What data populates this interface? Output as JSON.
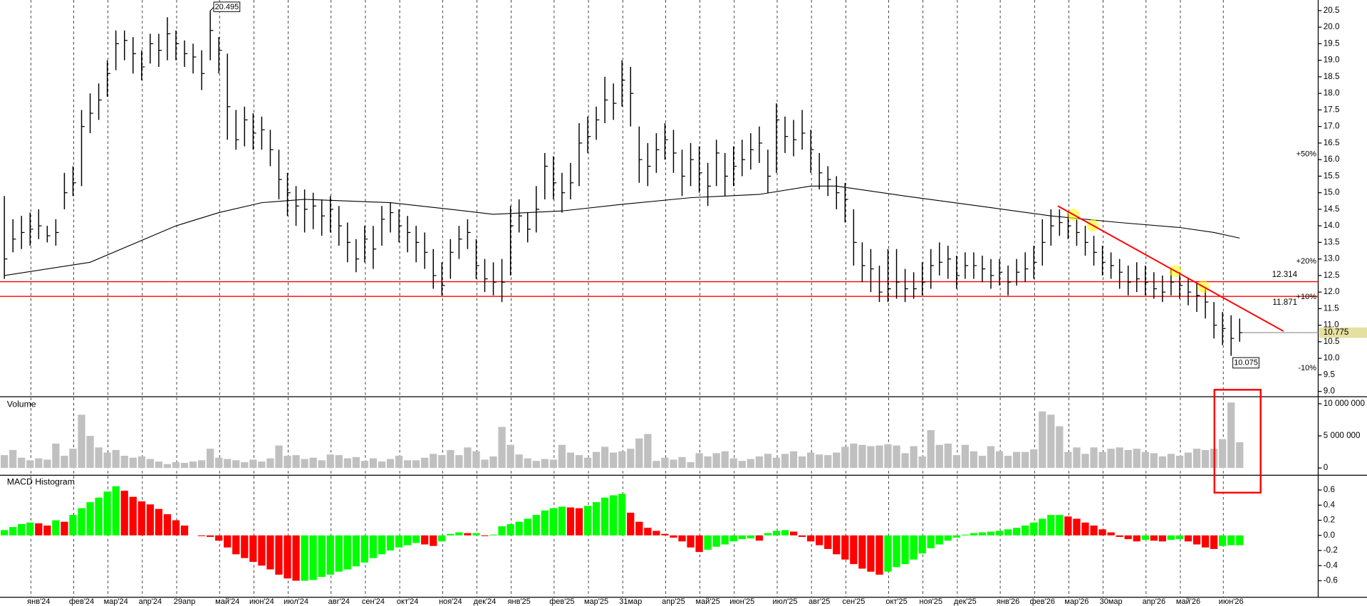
{
  "chart_data": [
    {
      "type": "ohlc",
      "color": "#000000",
      "ylim": [
        8.84,
        20.82
      ],
      "yticks": [
        {
          "value": 9,
          "label": "9.0"
        },
        9.5,
        {
          "value": 10,
          "label": "10.0"
        },
        10.5,
        {
          "value": 11,
          "label": "11.0"
        },
        11.5,
        {
          "value": 12,
          "label": "12.0"
        },
        12.5,
        {
          "value": 13,
          "label": "13.0"
        },
        13.5,
        {
          "value": 14,
          "label": "14.0"
        },
        14.5,
        {
          "value": 15,
          "label": "15.0"
        },
        15.5,
        {
          "value": 16,
          "label": "16.0"
        },
        16.5,
        {
          "value": 17,
          "label": "17.0"
        },
        17.5,
        {
          "value": 18,
          "label": "18.0"
        },
        18.5,
        {
          "value": 19,
          "label": "19.0"
        },
        19.5,
        {
          "value": 20,
          "label": "20.0"
        },
        20.5
      ],
      "high": [
        14.9,
        14.2,
        14.3,
        14.4,
        14.5,
        14.0,
        14.2,
        15.6,
        15.8,
        17.5,
        18.0,
        18.3,
        19.0,
        19.9,
        19.9,
        19.7,
        19.3,
        19.8,
        19.8,
        20.3,
        19.9,
        19.6,
        19.5,
        19.3,
        20.495,
        19.7,
        19.2,
        17.5,
        17.6,
        17.4,
        17.3,
        16.9,
        16.3,
        15.6,
        15.2,
        15.1,
        15.0,
        14.8,
        14.9,
        14.6,
        14.1,
        13.6,
        14.0,
        14.0,
        14.6,
        14.7,
        14.5,
        14.3,
        14.0,
        13.8,
        13.3,
        12.9,
        13.6,
        14.0,
        14.2,
        13.6,
        13.0,
        12.9,
        13.0,
        14.6,
        14.8,
        14.4,
        15.2,
        16.2,
        16.1,
        15.6,
        15.9,
        17.1,
        17.3,
        17.6,
        18.5,
        18.3,
        19.0,
        18.8,
        17.0,
        16.5,
        16.8,
        17.1,
        16.9,
        16.3,
        16.5,
        16.4,
        15.9,
        16.6,
        16.2,
        16.4,
        16.6,
        16.8,
        17.0,
        16.3,
        17.7,
        17.3,
        17.2,
        17.5,
        16.9,
        16.2,
        15.8,
        15.5,
        15.3,
        14.5,
        13.5,
        13.3,
        12.8,
        13.3,
        13.3,
        12.7,
        12.6,
        12.9,
        13.3,
        13.5,
        13.4,
        13.1,
        13.2,
        13.2,
        13.1,
        13.0,
        13.0,
        12.8,
        13.0,
        13.2,
        13.4,
        14.2,
        14.5,
        14.5,
        14.4,
        14.2,
        14.0,
        13.7,
        13.4,
        13.2,
        13.0,
        12.8,
        12.9,
        12.8,
        12.6,
        12.5,
        12.7,
        12.6,
        12.4,
        12.3,
        12.1,
        11.7,
        11.4,
        11.3,
        11.2
      ],
      "low": [
        12.4,
        13.2,
        13.3,
        13.4,
        13.6,
        13.5,
        13.4,
        14.5,
        14.9,
        15.2,
        16.8,
        17.2,
        17.9,
        18.7,
        19.0,
        18.6,
        18.4,
        18.9,
        18.8,
        19.0,
        19.0,
        18.8,
        18.6,
        18.1,
        19.0,
        18.6,
        16.6,
        16.3,
        16.4,
        16.3,
        16.3,
        15.8,
        14.8,
        14.3,
        14.0,
        13.8,
        13.9,
        13.7,
        13.8,
        13.4,
        12.9,
        12.6,
        12.9,
        12.7,
        13.4,
        13.8,
        13.5,
        13.2,
        12.9,
        12.7,
        12.1,
        11.9,
        12.4,
        13.0,
        13.3,
        12.4,
        12.0,
        11.9,
        11.7,
        12.5,
        13.8,
        13.5,
        13.8,
        14.8,
        14.8,
        14.4,
        14.8,
        15.2,
        16.2,
        16.6,
        17.1,
        17.2,
        17.6,
        17.0,
        15.3,
        15.2,
        15.6,
        16.0,
        15.6,
        14.9,
        15.2,
        15.0,
        14.6,
        15.2,
        14.9,
        15.2,
        15.5,
        15.7,
        15.9,
        15.0,
        15.6,
        16.2,
        16.1,
        16.3,
        15.6,
        15.1,
        14.9,
        14.5,
        14.1,
        12.8,
        12.3,
        12.0,
        11.7,
        11.7,
        11.8,
        11.7,
        11.8,
        11.9,
        12.1,
        12.5,
        12.4,
        12.1,
        12.4,
        12.4,
        12.3,
        12.1,
        12.2,
        11.9,
        12.2,
        12.3,
        12.4,
        12.8,
        13.4,
        13.7,
        13.6,
        13.4,
        13.1,
        12.8,
        12.5,
        12.4,
        12.1,
        11.9,
        12.0,
        11.9,
        11.8,
        11.7,
        11.9,
        11.8,
        11.6,
        11.4,
        11.2,
        10.6,
        10.4,
        10.075,
        10.5
      ],
      "close": [
        13.0,
        13.6,
        13.8,
        13.9,
        14.0,
        13.7,
        13.8,
        15.0,
        15.3,
        17.0,
        17.4,
        17.8,
        18.6,
        19.5,
        19.6,
        19.2,
        18.8,
        19.5,
        19.3,
        19.8,
        19.5,
        19.2,
        19.1,
        18.6,
        19.9,
        19.3,
        17.6,
        16.6,
        17.2,
        16.8,
        16.9,
        16.3,
        15.4,
        15.0,
        14.6,
        14.5,
        14.6,
        14.3,
        14.5,
        14.0,
        13.5,
        13.0,
        13.6,
        13.3,
        14.2,
        14.4,
        14.0,
        13.8,
        13.5,
        13.2,
        12.5,
        12.2,
        13.2,
        13.6,
        13.8,
        12.8,
        12.4,
        12.3,
        12.3,
        14.0,
        14.3,
        13.9,
        14.5,
        15.8,
        15.3,
        15.0,
        15.3,
        16.5,
        16.7,
        17.2,
        17.8,
        17.7,
        18.4,
        18.0,
        16.0,
        15.8,
        16.3,
        16.6,
        16.2,
        15.5,
        16.0,
        15.6,
        15.2,
        16.2,
        15.5,
        15.8,
        16.0,
        16.3,
        16.5,
        15.5,
        17.2,
        16.7,
        16.6,
        16.8,
        16.3,
        15.6,
        15.4,
        15.0,
        14.8,
        13.5,
        12.8,
        12.7,
        12.0,
        12.1,
        12.3,
        12.1,
        12.1,
        12.3,
        12.8,
        12.9,
        13.0,
        12.5,
        12.8,
        12.8,
        12.7,
        12.5,
        12.6,
        12.3,
        12.6,
        12.7,
        12.9,
        13.5,
        14.0,
        14.1,
        14.0,
        13.8,
        13.5,
        13.2,
        12.9,
        12.8,
        12.6,
        12.3,
        12.4,
        12.3,
        12.1,
        12.0,
        12.3,
        12.2,
        12.0,
        11.9,
        11.7,
        11.0,
        10.9,
        10.6,
        10.775
      ],
      "ma": {
        "color": "#000000",
        "x": [
          0,
          10,
          20,
          25,
          30,
          35,
          45,
          52,
          57,
          65,
          72,
          80,
          88,
          94,
          97,
          105,
          115,
          122,
          130,
          137,
          141,
          144
        ],
        "values": [
          12.5,
          12.9,
          14.0,
          14.4,
          14.7,
          14.8,
          14.7,
          14.5,
          14.35,
          14.45,
          14.65,
          14.85,
          14.95,
          15.2,
          15.2,
          14.9,
          14.55,
          14.3,
          14.1,
          13.95,
          13.8,
          13.63
        ]
      },
      "levels": [
        12.314,
        11.871
      ],
      "level_color": "#ff0000",
      "trendline": {
        "x": [
          122.8,
          149.1
        ],
        "y": [
          14.6,
          10.82
        ],
        "color": "#ff0000"
      },
      "percent_levels": [
        {
          "value": 50,
          "label": "+50%"
        },
        {
          "value": 20,
          "label": "+20%"
        },
        {
          "value": 10,
          "label": "+10%"
        },
        {
          "value": -10,
          "label": "-10%"
        }
      ],
      "up_color": "#009900",
      "down_color": "#cc0000"
    },
    {
      "type": "bar",
      "title": "Volume",
      "color": "#c0c0c0",
      "ylim": [
        -1130000,
        11100000
      ],
      "yticks": [
        {
          "value": 10000000,
          "label": "10 000 000"
        },
        {
          "value": 5000000,
          "label": "5 000 000"
        },
        0
      ],
      "values": [
        2000000,
        2800000,
        1600000,
        1200000,
        1500000,
        1300000,
        3800000,
        1900000,
        3000000,
        8300000,
        5000000,
        3200000,
        2400000,
        2800000,
        1900000,
        1600000,
        1800000,
        1400000,
        1000000,
        600000,
        900000,
        800000,
        1000000,
        1200000,
        3000000,
        1600000,
        1400000,
        1200000,
        900000,
        1300000,
        1000000,
        1500000,
        3500000,
        1900000,
        2000000,
        1400000,
        1600000,
        1200000,
        2100000,
        2000000,
        1500000,
        1700000,
        1100000,
        1500000,
        1000000,
        1400000,
        1900000,
        1200000,
        1200000,
        1600000,
        2200000,
        2000000,
        2800000,
        2000000,
        3200000,
        2600000,
        1300000,
        1800000,
        6400000,
        3600000,
        2100000,
        1500000,
        1100000,
        1400000,
        1300000,
        3600000,
        2400000,
        2000000,
        1600000,
        2500000,
        3300000,
        2400000,
        2600000,
        3000000,
        4600000,
        5300000,
        1100000,
        1600000,
        1300000,
        1700000,
        900000,
        2300000,
        1800000,
        2300000,
        2600000,
        1500000,
        1100000,
        1400000,
        1800000,
        2200000,
        1600000,
        2200000,
        2600000,
        1800000,
        2400000,
        2100000,
        2000000,
        2400000,
        3300000,
        3800000,
        3600000,
        3400000,
        3500000,
        3700000,
        3500000,
        2300000,
        3400000,
        1800000,
        5900000,
        3600000,
        3800000,
        2000000,
        3600000,
        2600000,
        1900000,
        3400000,
        2600000,
        1900000,
        2500000,
        2500000,
        2900000,
        8800000,
        8300000,
        6500000,
        2500000,
        3200000,
        2200000,
        3200000,
        2500000,
        3000000,
        3200000,
        2800000,
        3000000,
        2500000,
        2300000,
        1800000,
        2200000,
        1900000,
        2400000,
        3000000,
        2800000,
        3000000,
        4500000,
        10200000,
        4000000
      ]
    },
    {
      "type": "bar",
      "title": "MACD Histogram",
      "up_color": "#00ff00",
      "down_color": "#ff0000",
      "ylim": [
        -0.819,
        0.796
      ],
      "yticks": [
        0.6,
        0.4,
        0.2,
        {
          "value": 0,
          "label": "0.0"
        },
        -0.2,
        -0.4,
        -0.6
      ],
      "categories": [
        null,
        null,
        null,
        null,
        "янв'24",
        null,
        null,
        null,
        null,
        "фев'24",
        null,
        null,
        null,
        "мар'24",
        null,
        null,
        null,
        "апр'24",
        null,
        null,
        null,
        "29апр",
        null,
        null,
        null,
        null,
        "май'24",
        null,
        null,
        null,
        "июн'24",
        null,
        null,
        null,
        "июл'24",
        null,
        null,
        null,
        null,
        "авг'24",
        null,
        null,
        null,
        "сен'24",
        null,
        null,
        null,
        "окт'24",
        null,
        null,
        null,
        null,
        "ноя'24",
        null,
        null,
        null,
        "дек'24",
        null,
        null,
        null,
        "янв'25",
        null,
        null,
        null,
        null,
        "фев'25",
        null,
        null,
        null,
        "мар'25",
        null,
        null,
        null,
        "31мар",
        null,
        null,
        null,
        null,
        "апр'25",
        null,
        null,
        null,
        "май'25",
        null,
        null,
        null,
        "июн'25",
        null,
        null,
        null,
        null,
        "июл'25",
        null,
        null,
        null,
        "авг'25",
        null,
        null,
        null,
        "сен'25",
        null,
        null,
        null,
        null,
        "окт'25",
        null,
        null,
        null,
        "ноя'25",
        null,
        null,
        null,
        "дек'25",
        null,
        null,
        null,
        null,
        "янв'26",
        null,
        null,
        null,
        "фев'26",
        null,
        null,
        null,
        "мар'26",
        null,
        null,
        null,
        "30мар",
        null,
        null,
        null,
        null,
        "апр'26",
        null,
        null,
        null,
        "май'26",
        null,
        null,
        null,
        null,
        "июн'26",
        null
      ],
      "values": [
        0.07,
        0.11,
        0.15,
        0.17,
        0.16,
        0.13,
        0.2,
        0.18,
        0.27,
        0.36,
        0.44,
        0.5,
        0.58,
        0.65,
        0.59,
        0.51,
        0.45,
        0.41,
        0.35,
        0.28,
        0.2,
        0.13,
        0,
        -0.01,
        -0.02,
        -0.07,
        -0.16,
        -0.25,
        -0.3,
        -0.35,
        -0.4,
        -0.45,
        -0.52,
        -0.57,
        -0.6,
        -0.6,
        -0.59,
        -0.55,
        -0.52,
        -0.48,
        -0.45,
        -0.41,
        -0.36,
        -0.3,
        -0.25,
        -0.2,
        -0.16,
        -0.13,
        -0.1,
        -0.12,
        -0.14,
        -0.08,
        0.02,
        0.04,
        0.03,
        0.03,
        -0.01,
        0.01,
        0.12,
        0.15,
        0.18,
        0.22,
        0.27,
        0.33,
        0.36,
        0.38,
        0.37,
        0.36,
        0.39,
        0.44,
        0.5,
        0.53,
        0.55,
        0.3,
        0.18,
        0.1,
        0.06,
        0.02,
        -0.03,
        -0.08,
        -0.16,
        -0.22,
        -0.19,
        -0.15,
        -0.12,
        -0.08,
        -0.05,
        -0.04,
        -0.07,
        0.03,
        0.06,
        0.07,
        0.05,
        -0.02,
        -0.08,
        -0.13,
        -0.18,
        -0.25,
        -0.32,
        -0.38,
        -0.44,
        -0.48,
        -0.52,
        -0.48,
        -0.42,
        -0.38,
        -0.32,
        -0.24,
        -0.17,
        -0.12,
        -0.07,
        -0.03,
        0.01,
        0.03,
        0.04,
        0.05,
        0.06,
        0.08,
        0.1,
        0.13,
        0.17,
        0.22,
        0.27,
        0.27,
        0.25,
        0.22,
        0.17,
        0.13,
        0.08,
        0.04,
        -0.02,
        -0.05,
        -0.08,
        -0.06,
        -0.07,
        -0.08,
        -0.06,
        -0.05,
        -0.08,
        -0.12,
        -0.16,
        -0.18,
        -0.14,
        -0.13,
        -0.13
      ]
    }
  ]
}
